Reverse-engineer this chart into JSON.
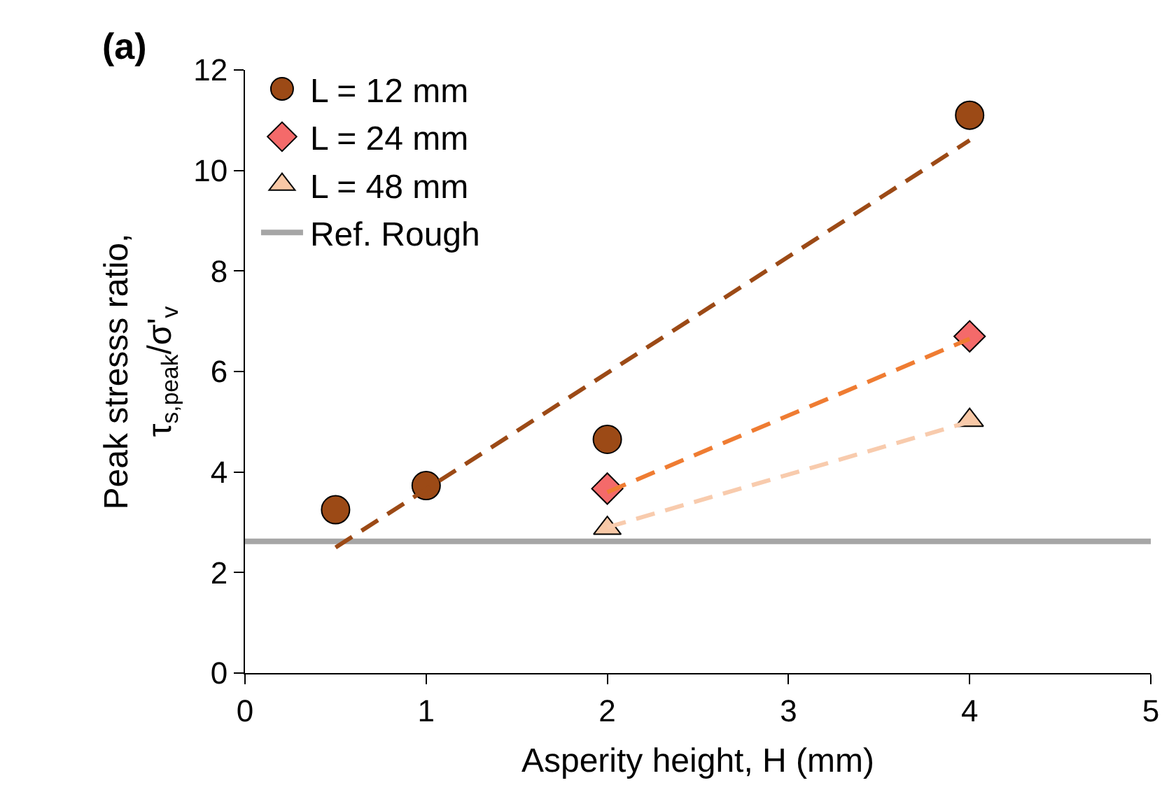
{
  "chart_data": {
    "type": "scatter",
    "title": "(a)",
    "xlabel": "Asperity height, H (mm)",
    "ylabel": "Peak stresss ratio,\nτ$_{s,peak}$/σ'$_{v}$",
    "xlim": [
      0,
      5
    ],
    "xticks": [
      0,
      1,
      2,
      3,
      4,
      5
    ],
    "ylim": [
      0,
      12
    ],
    "yticks": [
      0,
      2,
      4,
      6,
      8,
      10,
      12
    ],
    "legend": "top left",
    "series": [
      {
        "name": "L = 12 mm",
        "marker": "circle",
        "color": "#9c4a16",
        "x": [
          0.5,
          1,
          2,
          4
        ],
        "values": [
          3.25,
          3.73,
          4.65,
          11.1
        ]
      },
      {
        "name": "L = 24 mm",
        "marker": "diamond",
        "color": "#f46a6a",
        "x": [
          2,
          4
        ],
        "values": [
          3.67,
          6.7
        ]
      },
      {
        "name": "L = 48 mm",
        "marker": "triangle",
        "color": "#f8c8a6",
        "x": [
          2,
          4
        ],
        "values": [
          2.88,
          5.03
        ]
      },
      {
        "name": "Ref. Rough",
        "type": "line",
        "line_style": "solid",
        "color": "#a6a6a6",
        "x": [
          0,
          5
        ],
        "values": [
          2.62,
          2.62
        ]
      },
      {
        "type": "line",
        "line_style": "dashed",
        "color": "#9c4a16",
        "x": [
          0.5,
          4
        ],
        "values": [
          2.5,
          10.6
        ]
      },
      {
        "type": "line",
        "line_style": "dashed",
        "color": "#ef7c32",
        "x": [
          2,
          4
        ],
        "values": [
          3.6,
          6.65
        ]
      },
      {
        "type": "line",
        "line_style": "dashed",
        "color": "#f8cbad",
        "x": [
          2,
          4
        ],
        "values": [
          2.9,
          5.0
        ]
      }
    ]
  }
}
